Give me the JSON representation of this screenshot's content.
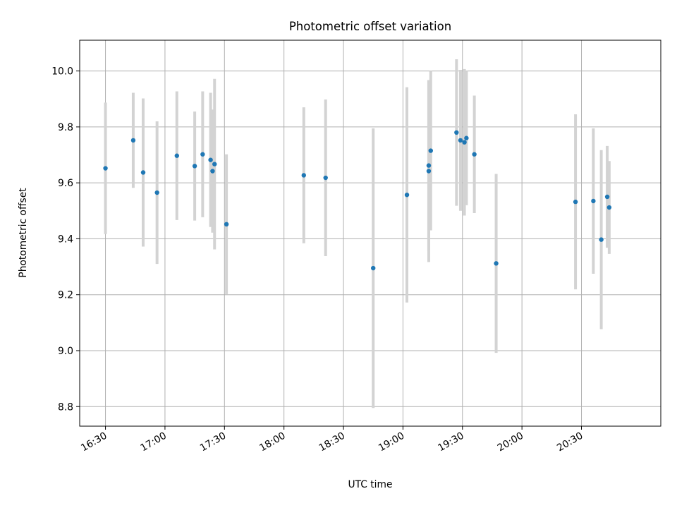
{
  "chart_data": {
    "type": "scatter",
    "title": "Photometric offset variation",
    "xlabel": "UTC time",
    "ylabel": "Photometric offset",
    "xlim": [
      "16:17",
      "21:10"
    ],
    "ylim": [
      8.73,
      10.11
    ],
    "grid": true,
    "x_ticks": [
      "16:30",
      "17:00",
      "17:30",
      "18:00",
      "18:30",
      "19:00",
      "19:30",
      "20:00",
      "20:30"
    ],
    "y_ticks": [
      "8.8",
      "9.0",
      "9.2",
      "9.4",
      "9.6",
      "9.8",
      "10.0"
    ],
    "colors": {
      "point": "#1f77b4",
      "errorbar": "#d3d3d3",
      "grid": "#b0b0b0"
    },
    "points": [
      {
        "x": "16:30",
        "y": 9.652,
        "err": 0.235
      },
      {
        "x": "16:44",
        "y": 9.752,
        "err": 0.17
      },
      {
        "x": "16:49",
        "y": 9.637,
        "err": 0.265
      },
      {
        "x": "16:56",
        "y": 9.565,
        "err": 0.255
      },
      {
        "x": "17:06",
        "y": 9.697,
        "err": 0.23
      },
      {
        "x": "17:15",
        "y": 9.66,
        "err": 0.195
      },
      {
        "x": "17:19",
        "y": 9.702,
        "err": 0.225
      },
      {
        "x": "17:23",
        "y": 9.682,
        "err": 0.24
      },
      {
        "x": "17:24",
        "y": 9.642,
        "err": 0.22
      },
      {
        "x": "17:25",
        "y": 9.667,
        "err": 0.305
      },
      {
        "x": "17:31",
        "y": 9.452,
        "err": 0.25
      },
      {
        "x": "18:10",
        "y": 9.627,
        "err": 0.243
      },
      {
        "x": "18:21",
        "y": 9.618,
        "err": 0.28
      },
      {
        "x": "18:45",
        "y": 9.295,
        "err": 0.5
      },
      {
        "x": "19:02",
        "y": 9.557,
        "err": 0.385
      },
      {
        "x": "19:13",
        "y": 9.662,
        "err": 0.305
      },
      {
        "x": "19:13",
        "y": 9.642,
        "err": 0.325
      },
      {
        "x": "19:14",
        "y": 9.715,
        "err": 0.285
      },
      {
        "x": "19:27",
        "y": 9.78,
        "err": 0.262
      },
      {
        "x": "19:29",
        "y": 9.752,
        "err": 0.252
      },
      {
        "x": "19:31",
        "y": 9.745,
        "err": 0.262
      },
      {
        "x": "19:32",
        "y": 9.76,
        "err": 0.24
      },
      {
        "x": "19:36",
        "y": 9.702,
        "err": 0.21
      },
      {
        "x": "19:47",
        "y": 9.312,
        "err": 0.32
      },
      {
        "x": "20:27",
        "y": 9.532,
        "err": 0.313
      },
      {
        "x": "20:36",
        "y": 9.535,
        "err": 0.26
      },
      {
        "x": "20:40",
        "y": 9.397,
        "err": 0.32
      },
      {
        "x": "20:43",
        "y": 9.55,
        "err": 0.182
      },
      {
        "x": "20:44",
        "y": 9.512,
        "err": 0.166
      }
    ]
  }
}
